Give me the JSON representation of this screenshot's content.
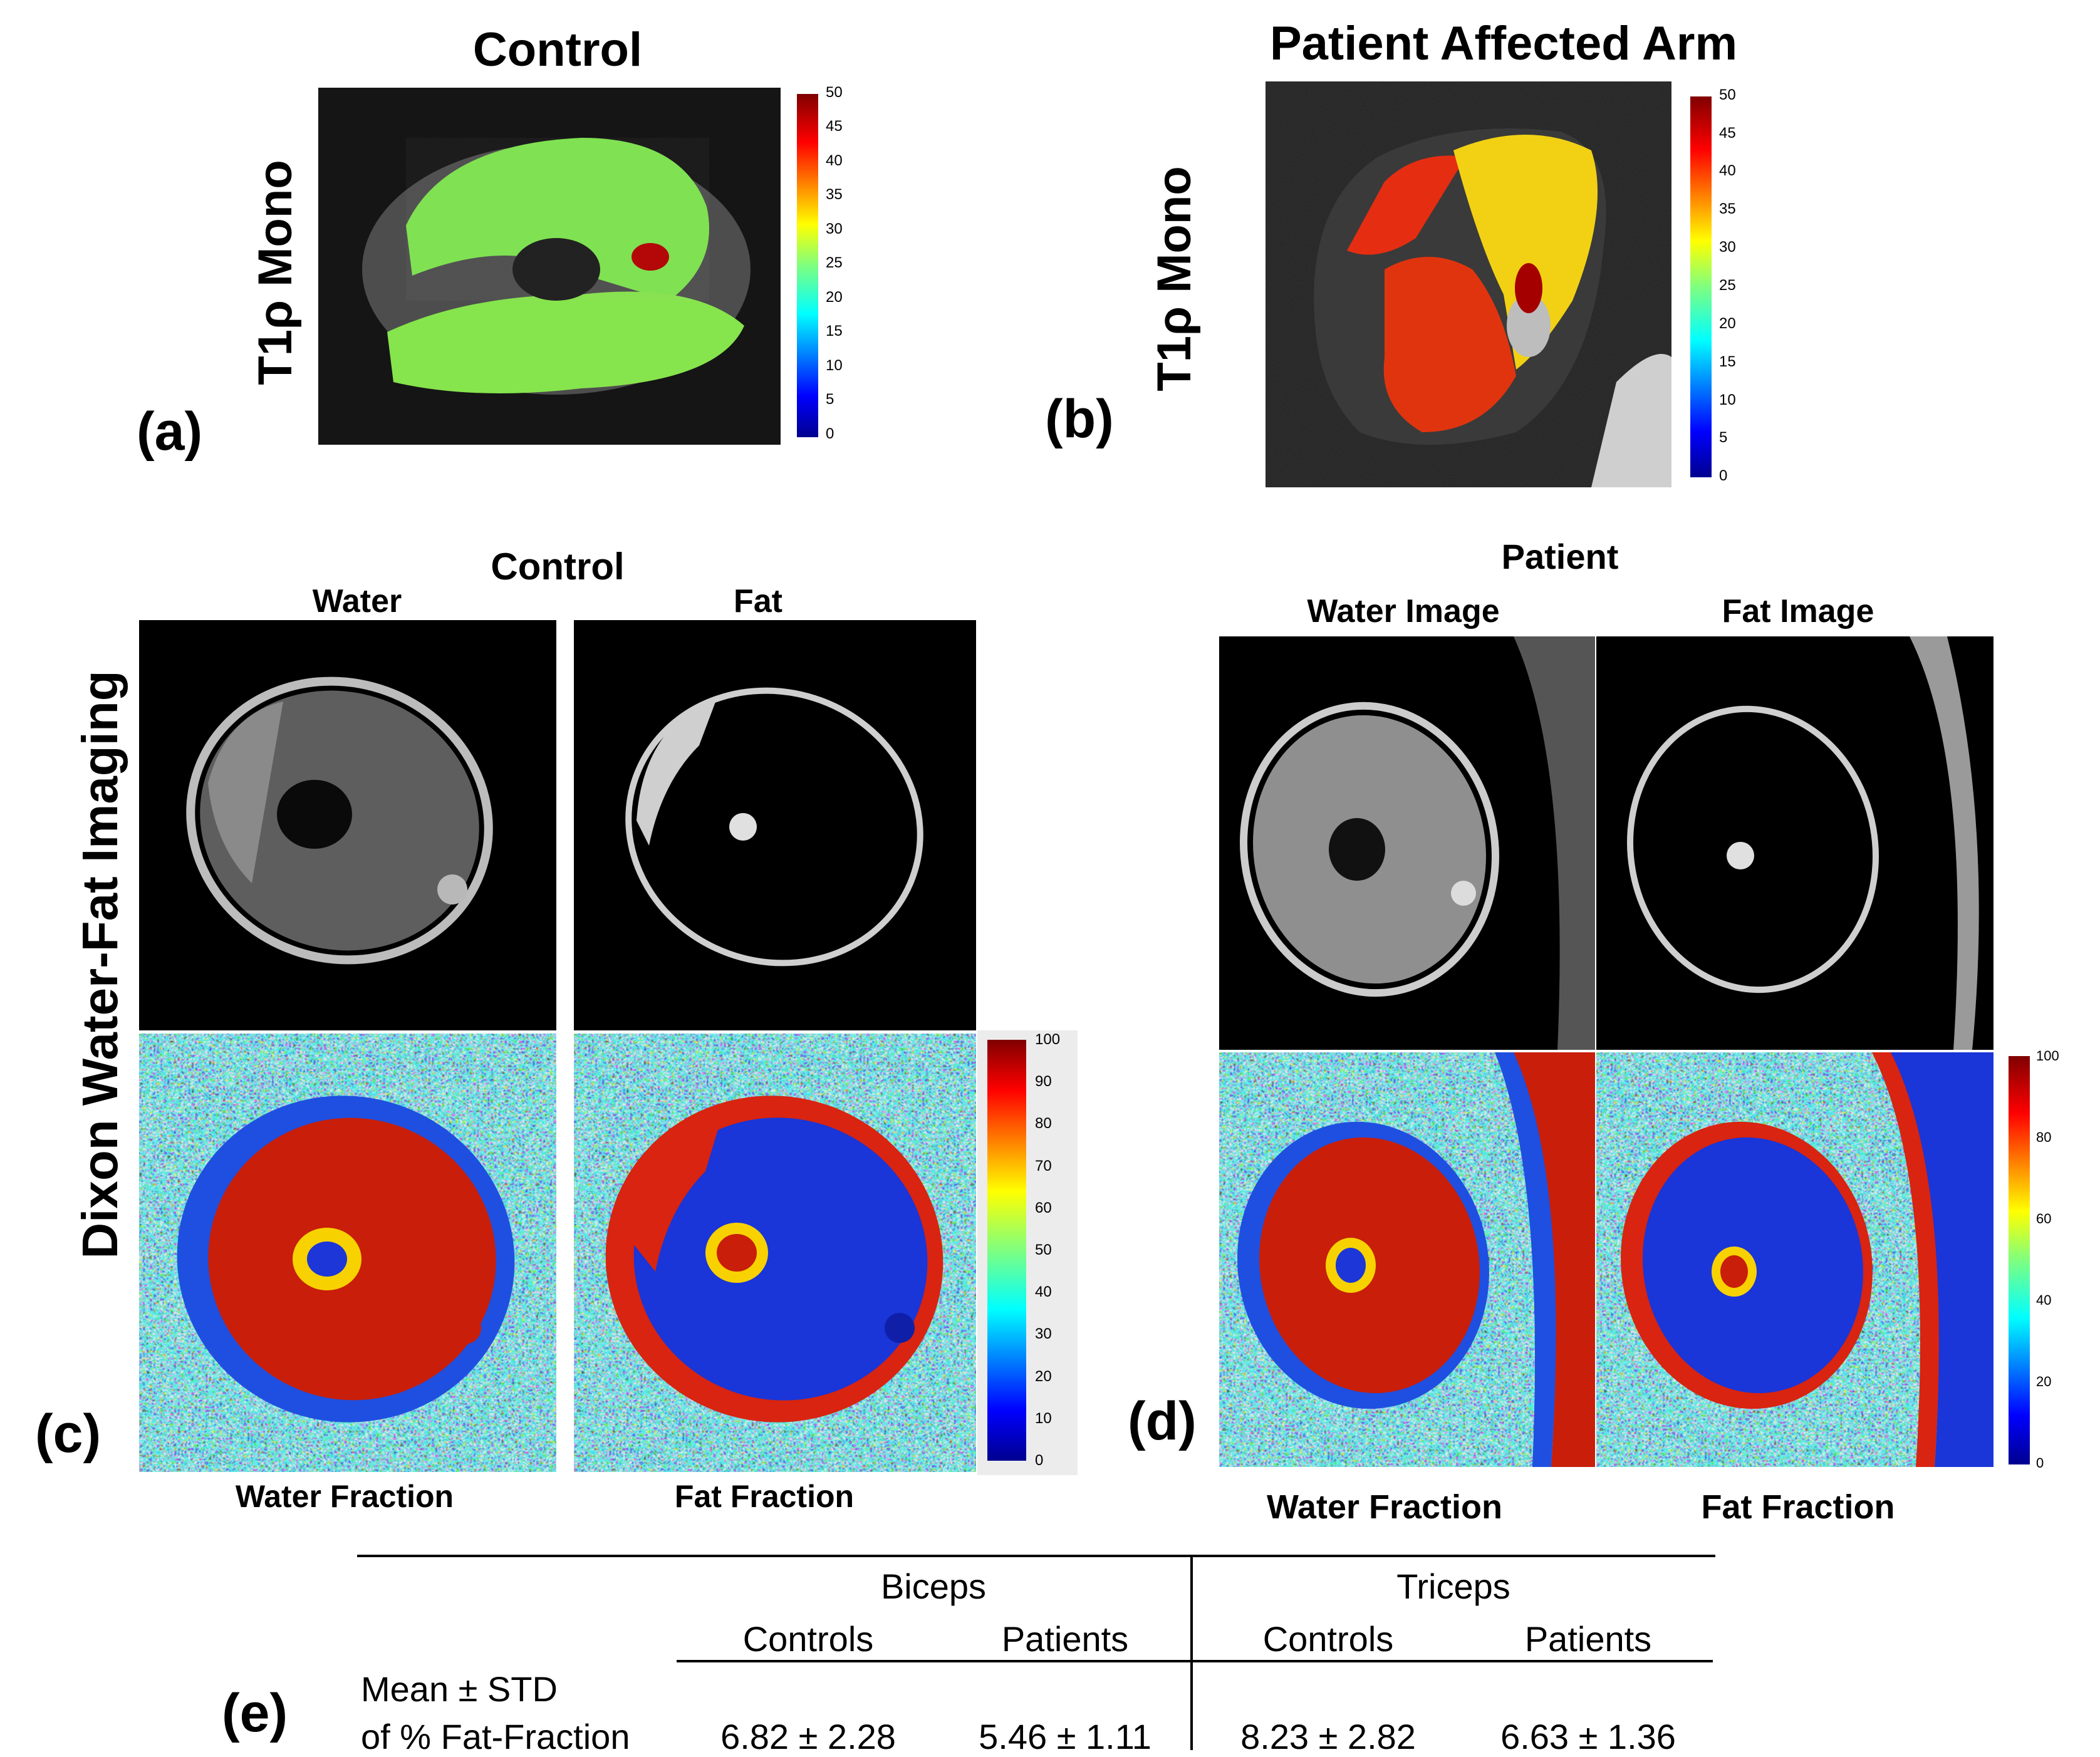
{
  "panel_a": {
    "title": "Control",
    "row_label": "T1ρ Mono",
    "letter": "(a)",
    "colorbar_ticks": [
      "50",
      "45",
      "40",
      "35",
      "30",
      "25",
      "20",
      "15",
      "10",
      "5",
      "0"
    ]
  },
  "panel_b": {
    "title": "Patient Affected Arm",
    "row_label": "T1ρ Mono",
    "letter": "(b)",
    "colorbar_ticks": [
      "50",
      "45",
      "40",
      "35",
      "30",
      "25",
      "20",
      "15",
      "10",
      "5",
      "0"
    ]
  },
  "dixon_label": "Dixon Water-Fat Imaging",
  "panel_c": {
    "group_title": "Control",
    "top_left_label": "Water",
    "top_right_label": "Fat",
    "bottom_left_label": "Water Fraction",
    "bottom_right_label": "Fat Fraction",
    "letter": "(c)",
    "colorbar_ticks": [
      "100",
      "90",
      "80",
      "70",
      "60",
      "50",
      "40",
      "30",
      "20",
      "10",
      "0"
    ]
  },
  "panel_d": {
    "group_title": "Patient",
    "top_left_label": "Water Image",
    "top_right_label": "Fat Image",
    "bottom_left_label": "Water Fraction",
    "bottom_right_label": "Fat Fraction",
    "letter": "(d)",
    "colorbar_ticks": [
      "100",
      "80",
      "60",
      "40",
      "20",
      "0"
    ]
  },
  "table": {
    "letter": "(e)",
    "groups": [
      "Biceps",
      "Triceps"
    ],
    "subheaders": [
      "Controls",
      "Patients",
      "Controls",
      "Patients"
    ],
    "row_label_line1": "Mean ± STD",
    "row_label_line2": "of % Fat-Fraction",
    "values": [
      "6.82 ± 2.28",
      "5.46 ± 1.11",
      "8.23 ± 2.82",
      "6.63 ± 1.36"
    ]
  }
}
